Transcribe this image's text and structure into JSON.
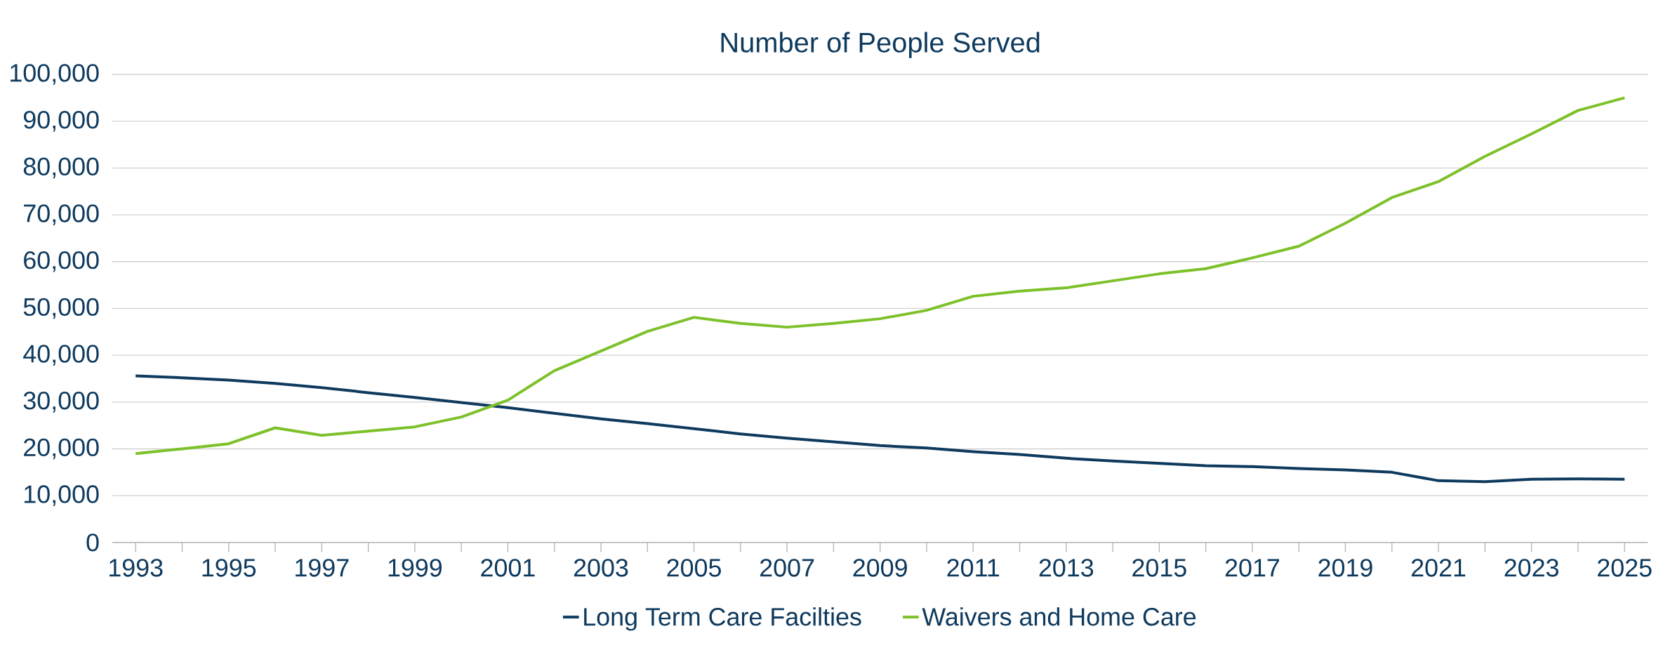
{
  "chart_data": {
    "type": "line",
    "title": "Number of People Served",
    "categories": [
      "1993",
      null,
      "1995",
      null,
      "1997",
      null,
      "1999",
      null,
      "2001",
      null,
      "2003",
      null,
      "2005",
      null,
      "2007",
      null,
      "2009",
      null,
      "2011",
      null,
      "2013",
      null,
      "2015",
      null,
      "2017",
      null,
      "2019",
      null,
      "2021",
      null,
      "2023",
      null,
      "2025"
    ],
    "series": [
      {
        "name": "Long Term Care Facilties",
        "color": "#0e3a5e",
        "values": [
          35600,
          35200,
          34700,
          34000,
          33100,
          32000,
          31000,
          29900,
          28800,
          27600,
          26400,
          25400,
          24300,
          23200,
          22300,
          21500,
          20700,
          20200,
          19400,
          18800,
          18000,
          17400,
          16900,
          16400,
          16200,
          15800,
          15500,
          15000,
          13200,
          13000,
          13500,
          13600,
          13500
        ]
      },
      {
        "name": "Waivers and Home Care",
        "color": "#7dc12a",
        "values": [
          19000,
          20000,
          21100,
          24500,
          22900,
          23800,
          24700,
          26800,
          30400,
          36700,
          40900,
          45100,
          48100,
          46800,
          46000,
          46800,
          47800,
          49600,
          52600,
          53700,
          54400,
          55900,
          57400,
          58500,
          60800,
          63300,
          68200,
          73700,
          77100,
          82500,
          87300,
          92300,
          95000
        ]
      }
    ],
    "ylim": [
      0,
      100000
    ],
    "yticks": [
      0,
      {
        "value": 10000,
        "label": "10,000"
      },
      {
        "value": 20000,
        "label": "20,000"
      },
      {
        "value": 30000,
        "label": "30,000"
      },
      {
        "value": 40000,
        "label": "40,000"
      },
      {
        "value": 50000,
        "label": "50,000"
      },
      {
        "value": 60000,
        "label": "60,000"
      },
      {
        "value": 70000,
        "label": "70,000"
      },
      {
        "value": 80000,
        "label": "80,000"
      },
      {
        "value": 90000,
        "label": "90,000"
      },
      {
        "value": 100000,
        "label": "100,000"
      }
    ],
    "grid": "y",
    "legend": "bottom",
    "marker": "none",
    "line_style": "solid"
  }
}
